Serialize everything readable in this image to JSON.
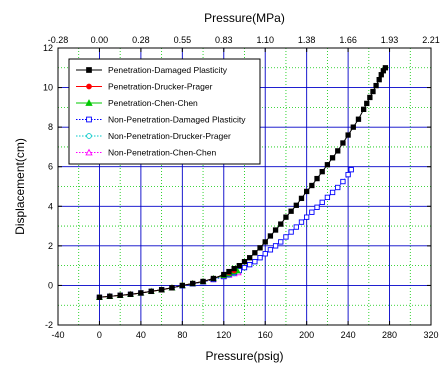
{
  "chart_data": {
    "type": "scatter",
    "title": "",
    "xlabel": "Pressure(psig)",
    "ylabel": "Displacement(cm)",
    "x2label": "Pressure(MPa)",
    "xlim": [
      -40,
      320
    ],
    "ylim": [
      -2,
      12
    ],
    "x_ticks": [
      -40,
      0,
      40,
      80,
      120,
      160,
      200,
      240,
      280,
      320
    ],
    "y_ticks": [
      -2,
      0,
      2,
      4,
      6,
      8,
      10,
      12
    ],
    "x2_ticks": [
      "-0.28",
      "0.00",
      "0.28",
      "0.55",
      "0.83",
      "1.10",
      "1.38",
      "1.66",
      "1.93",
      "2.21"
    ],
    "grid": true,
    "grid_color": "#00c800",
    "major_grid_color": "#0000c8",
    "legend_position": "top-left",
    "series": [
      {
        "name": "Penetration-Damaged Plasticity",
        "color": "#000000",
        "marker": "square-filled",
        "line": "solid",
        "x": [
          0,
          10,
          20,
          30,
          40,
          50,
          60,
          70,
          80,
          90,
          100,
          110,
          120,
          125,
          130,
          135,
          140,
          145,
          150,
          155,
          160,
          165,
          170,
          175,
          180,
          185,
          190,
          195,
          200,
          205,
          210,
          215,
          220,
          225,
          230,
          235,
          240,
          245,
          250,
          255,
          258,
          261,
          264,
          267,
          270,
          272,
          274,
          276
        ],
        "y": [
          -0.6,
          -0.55,
          -0.5,
          -0.45,
          -0.38,
          -0.3,
          -0.22,
          -0.12,
          0,
          0.1,
          0.2,
          0.35,
          0.55,
          0.7,
          0.85,
          1.0,
          1.2,
          1.4,
          1.65,
          1.9,
          2.2,
          2.5,
          2.8,
          3.1,
          3.45,
          3.75,
          4.05,
          4.4,
          4.75,
          5.05,
          5.4,
          5.75,
          6.1,
          6.45,
          6.8,
          7.2,
          7.6,
          8.0,
          8.4,
          8.9,
          9.2,
          9.5,
          9.8,
          10.1,
          10.4,
          10.65,
          10.85,
          11.0
        ]
      },
      {
        "name": "Penetration-Drucker-Prager",
        "color": "#ff0000",
        "marker": "circle-filled",
        "line": "solid",
        "x": [
          0,
          10,
          20,
          30,
          40,
          50,
          60,
          70,
          80,
          90,
          100,
          110,
          120,
          125,
          130
        ],
        "y": [
          -0.6,
          -0.55,
          -0.5,
          -0.45,
          -0.38,
          -0.3,
          -0.22,
          -0.12,
          0,
          0.1,
          0.2,
          0.35,
          0.55,
          0.65,
          0.75
        ]
      },
      {
        "name": "Penetration-Chen-Chen",
        "color": "#00c800",
        "marker": "triangle-filled",
        "line": "solid",
        "x": [
          0,
          10,
          20,
          30,
          40,
          50,
          60,
          70,
          80,
          90,
          100,
          110,
          120,
          125,
          130,
          133
        ],
        "y": [
          -0.6,
          -0.55,
          -0.5,
          -0.45,
          -0.38,
          -0.3,
          -0.22,
          -0.12,
          0,
          0.1,
          0.2,
          0.35,
          0.5,
          0.6,
          0.7,
          0.75
        ]
      },
      {
        "name": "Non-Penetration-Damaged Plasticity",
        "color": "#0000ff",
        "marker": "square-open",
        "line": "dotted",
        "x": [
          0,
          10,
          20,
          30,
          40,
          50,
          60,
          70,
          80,
          90,
          100,
          110,
          120,
          125,
          130,
          135,
          140,
          145,
          150,
          155,
          160,
          165,
          170,
          175,
          180,
          185,
          190,
          195,
          200,
          205,
          210,
          215,
          220,
          225,
          230,
          235,
          240,
          243
        ],
        "y": [
          -0.6,
          -0.55,
          -0.5,
          -0.45,
          -0.38,
          -0.3,
          -0.22,
          -0.12,
          -0.02,
          0.08,
          0.18,
          0.3,
          0.45,
          0.55,
          0.65,
          0.75,
          0.9,
          1.05,
          1.2,
          1.4,
          1.6,
          1.8,
          2.0,
          2.2,
          2.45,
          2.7,
          2.95,
          3.2,
          3.45,
          3.7,
          3.95,
          4.2,
          4.45,
          4.7,
          4.95,
          5.25,
          5.6,
          5.85
        ]
      },
      {
        "name": "Non-Penetration-Drucker-Prager",
        "color": "#00c8c8",
        "marker": "circle-open",
        "line": "dotted",
        "x": [
          0,
          10,
          20,
          30,
          40,
          50,
          60,
          70,
          80,
          90,
          100,
          110,
          120,
          125,
          130
        ],
        "y": [
          -0.6,
          -0.55,
          -0.5,
          -0.45,
          -0.38,
          -0.3,
          -0.22,
          -0.12,
          -0.02,
          0.08,
          0.18,
          0.3,
          0.45,
          0.52,
          0.6
        ]
      },
      {
        "name": "Non-Penetration-Chen-Chen",
        "color": "#ff00ff",
        "marker": "triangle-open",
        "line": "dotted",
        "x": [
          0,
          10,
          20,
          30,
          40,
          50,
          60,
          70,
          80,
          90,
          100,
          110,
          120,
          125,
          130,
          134
        ],
        "y": [
          -0.6,
          -0.55,
          -0.5,
          -0.45,
          -0.38,
          -0.3,
          -0.22,
          -0.12,
          -0.02,
          0.08,
          0.18,
          0.3,
          0.45,
          0.52,
          0.6,
          0.65
        ]
      }
    ]
  }
}
